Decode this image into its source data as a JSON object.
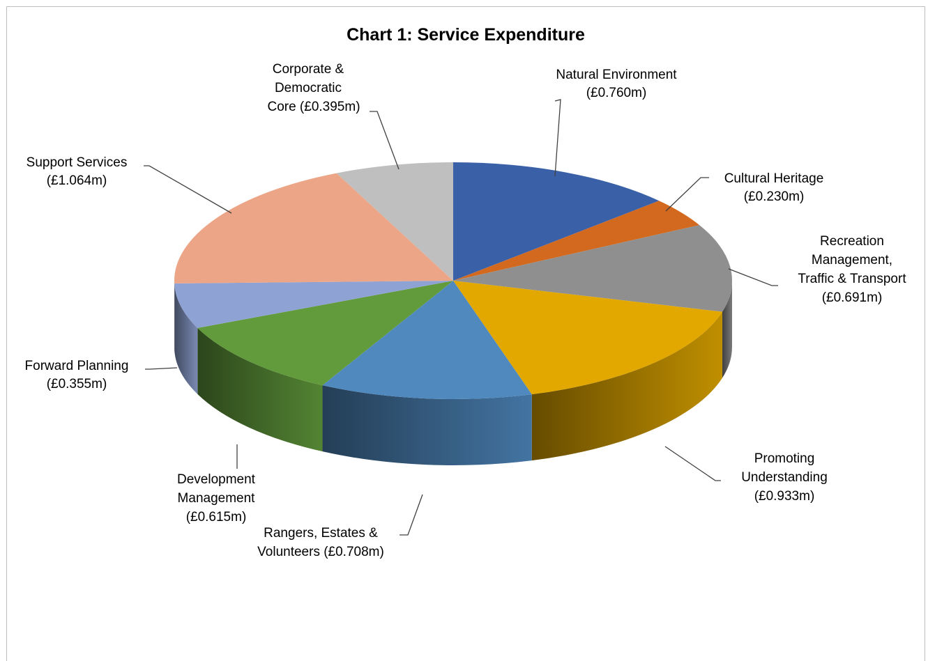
{
  "chart_data": {
    "type": "pie",
    "style": "3d",
    "title": "Chart 1: Service Expenditure",
    "unit": "£m",
    "slices": [
      {
        "name": "Natural Environment",
        "value": 0.76,
        "value_label": "(£0.760m)",
        "color": "#3A61A8",
        "label_lines": [
          "Natural  Environment",
          "(£0.760m)"
        ]
      },
      {
        "name": "Cultural Heritage",
        "value": 0.23,
        "value_label": "(£0.230m)",
        "color": "#D2691E",
        "label_lines": [
          "Cultural  Heritage",
          "(£0.230m)"
        ]
      },
      {
        "name": "Recreation Management, Traffic & Transport",
        "value": 0.691,
        "value_label": "(£0.691m)",
        "color": "#8F8F8F",
        "label_lines": [
          "Recreation",
          "Management,",
          "Traffic & Transport",
          "(£0.691m)"
        ]
      },
      {
        "name": "Promoting Understanding",
        "value": 0.933,
        "value_label": "(£0.933m)",
        "color": "#E2A800",
        "label_lines": [
          "Promoting",
          "Understanding",
          "(£0.933m)"
        ]
      },
      {
        "name": "Rangers, Estates & Volunteers",
        "value": 0.708,
        "value_label": "(£0.708m)",
        "color": "#4F89BE",
        "label_lines": [
          "Rangers, Estates &",
          "Volunteers (£0.708m)"
        ]
      },
      {
        "name": "Development Management",
        "value": 0.615,
        "value_label": "(£0.615m)",
        "color": "#629B3C",
        "label_lines": [
          "Development",
          "Management",
          "(£0.615m)"
        ]
      },
      {
        "name": "Forward Planning",
        "value": 0.355,
        "value_label": "(£0.355m)",
        "color": "#8FA2D4",
        "label_lines": [
          "Forward Planning",
          "(£0.355m)"
        ]
      },
      {
        "name": "Support Services",
        "value": 1.064,
        "value_label": "(£1.064m)",
        "color": "#ECA687",
        "label_lines": [
          "Support Services",
          "(£1.064m)"
        ]
      },
      {
        "name": "Corporate & Democratic Core",
        "value": 0.395,
        "value_label": "(£0.395m)",
        "color": "#BFBFBF",
        "label_lines": [
          "Corporate &",
          "Democratic",
          "Core  (£0.395m)"
        ]
      }
    ]
  }
}
